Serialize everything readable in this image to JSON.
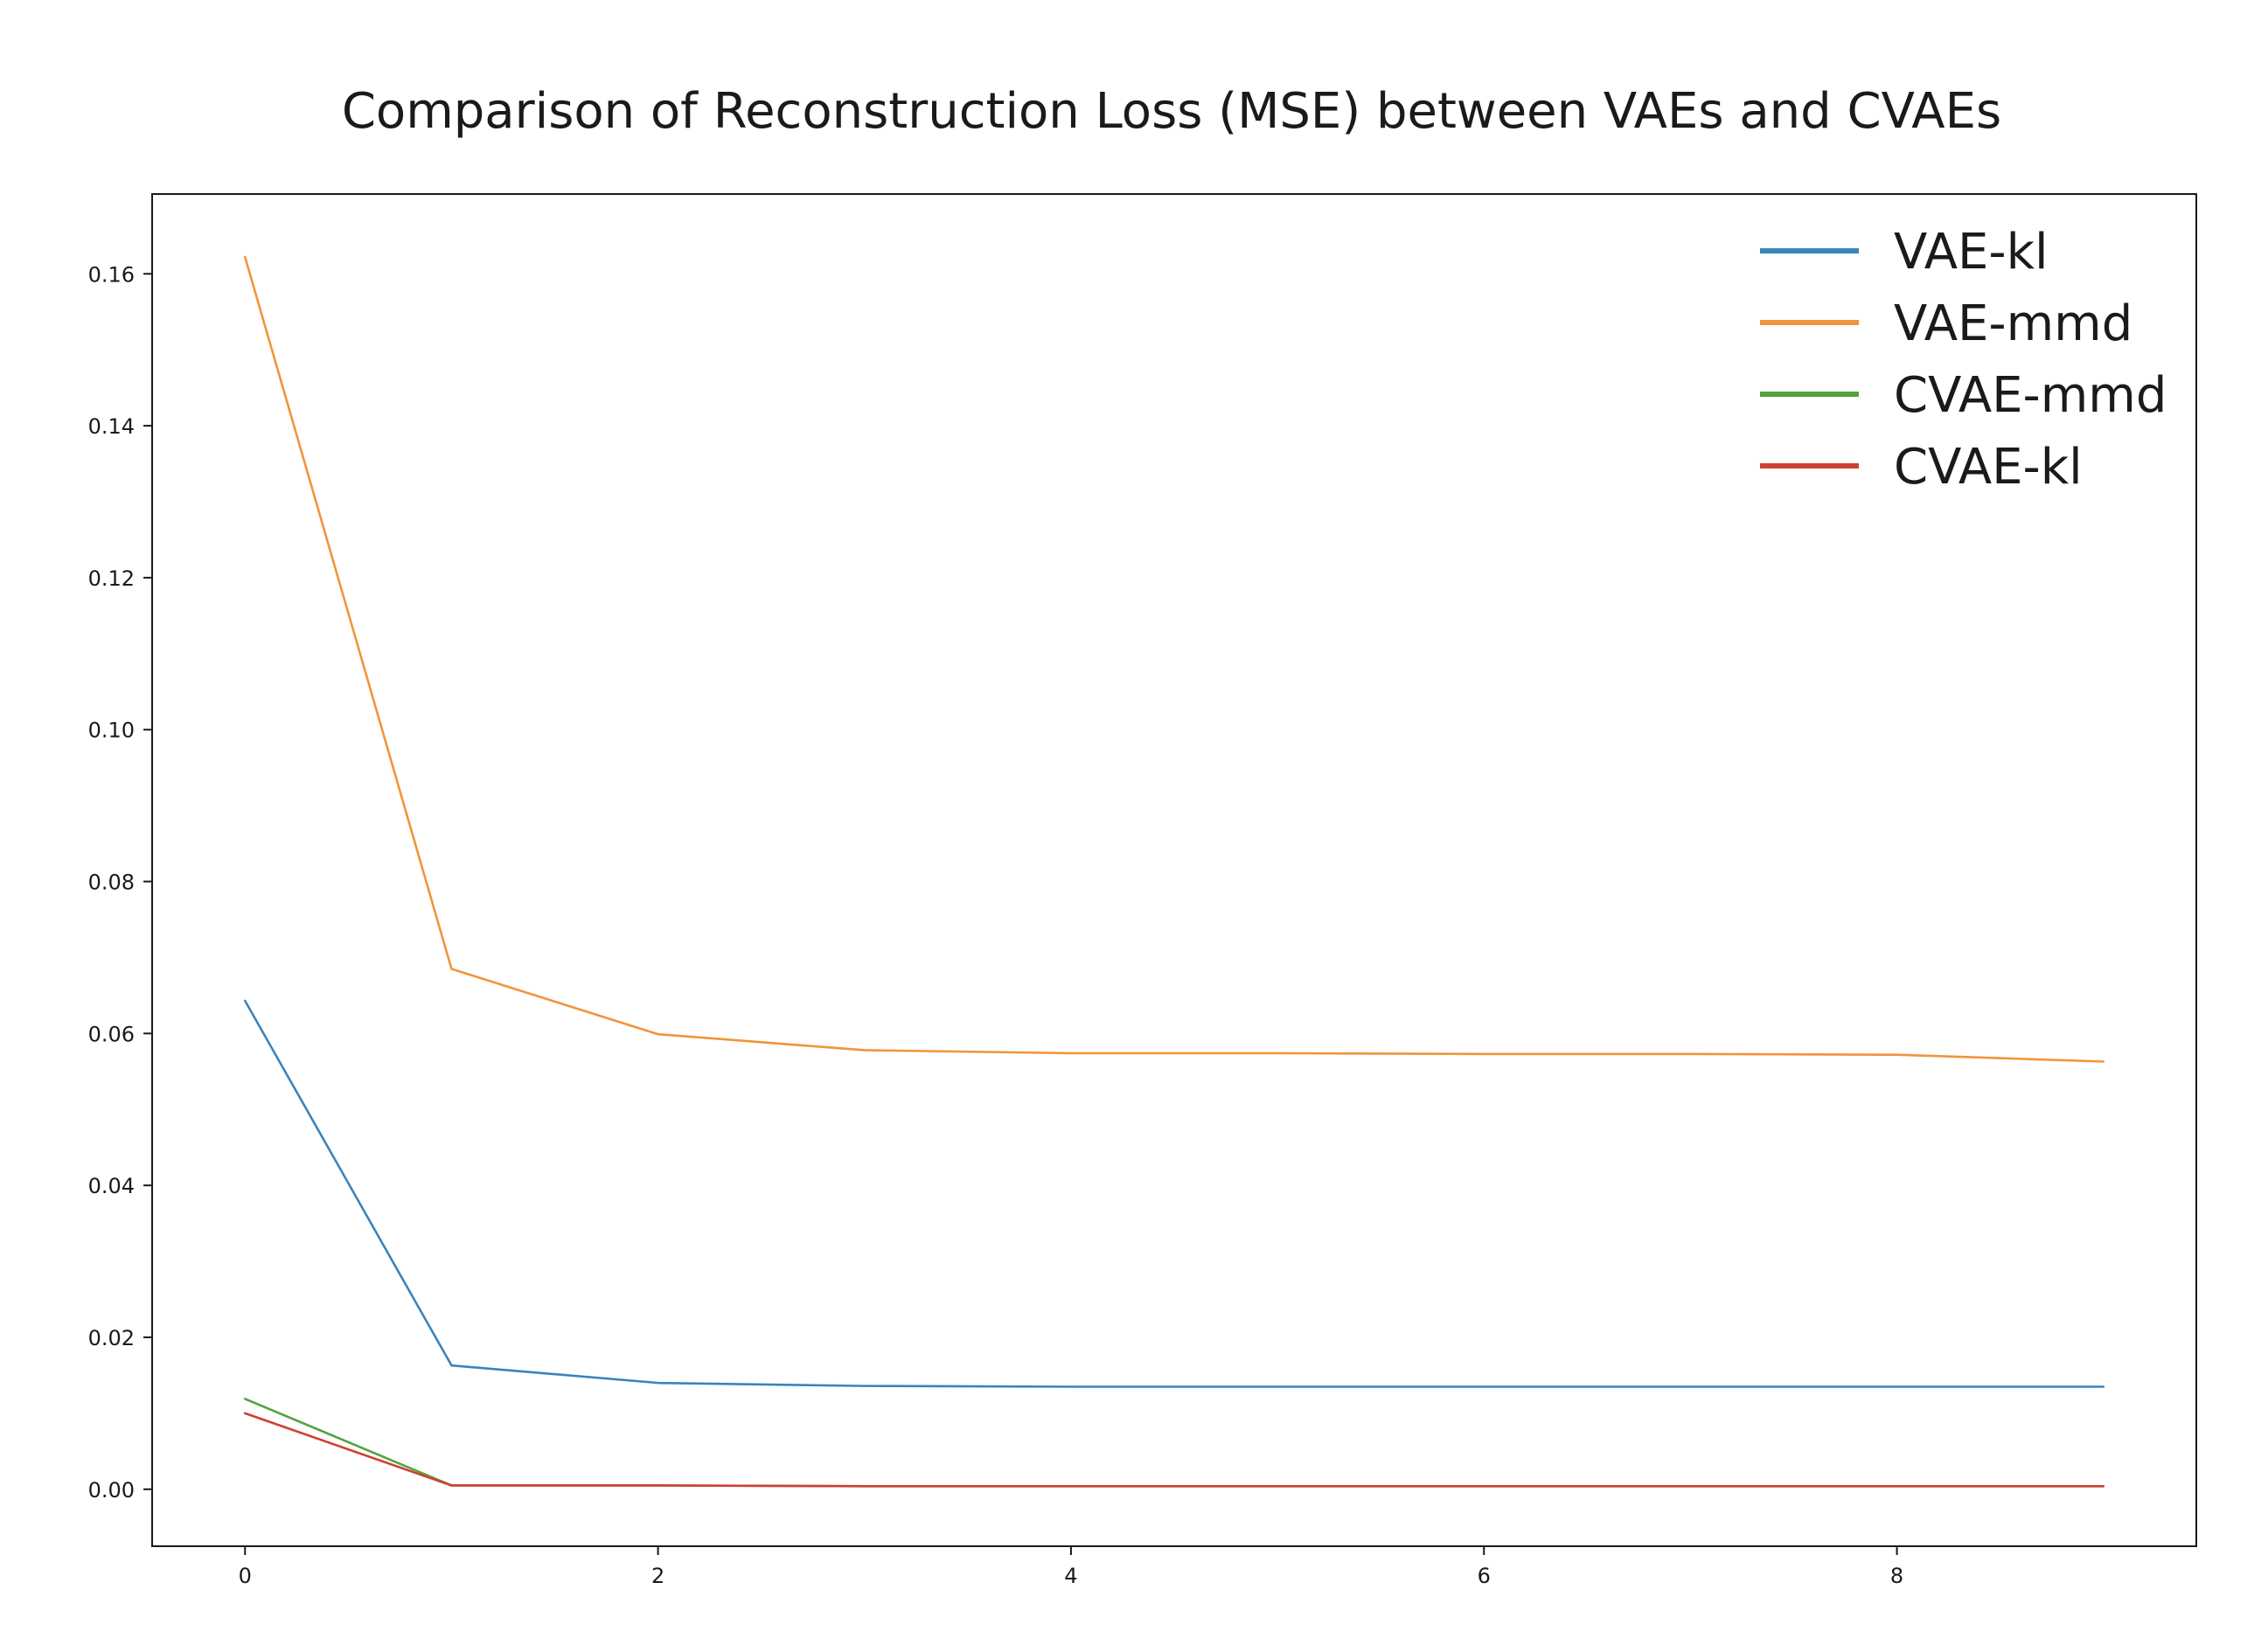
{
  "chart_data": {
    "type": "line",
    "title": "Comparison of Reconstruction Loss (MSE) between VAEs and CVAEs",
    "xlabel": "",
    "ylabel": "",
    "x": [
      0,
      1,
      2,
      3,
      4,
      5,
      6,
      7,
      8,
      9
    ],
    "xlim": [
      -0.45,
      9.45
    ],
    "ylim": [
      -0.0075,
      0.1705
    ],
    "x_ticks": [
      0,
      2,
      4,
      6,
      8
    ],
    "x_tick_labels": [
      "0",
      "2",
      "4",
      "6",
      "8"
    ],
    "y_ticks": [
      0.0,
      0.02,
      0.04,
      0.06,
      0.08,
      0.1,
      0.12,
      0.14,
      0.16
    ],
    "y_tick_labels": [
      "0.00",
      "0.02",
      "0.04",
      "0.06",
      "0.08",
      "0.10",
      "0.12",
      "0.14",
      "0.16"
    ],
    "grid": false,
    "legend_position": "top-right",
    "series": [
      {
        "name": "VAE-kl",
        "color": "#3a84bd",
        "values": [
          0.0643,
          0.0163,
          0.014,
          0.0136,
          0.0135,
          0.0135,
          0.0135,
          0.0135,
          0.0135,
          0.0135
        ]
      },
      {
        "name": "VAE-mmd",
        "color": "#f0953a",
        "values": [
          0.1622,
          0.0685,
          0.0599,
          0.0578,
          0.0574,
          0.0574,
          0.0573,
          0.0573,
          0.0572,
          0.0563
        ]
      },
      {
        "name": "CVAE-mmd",
        "color": "#52a33f",
        "values": [
          0.0119,
          0.0005,
          0.0005,
          0.0004,
          0.0004,
          0.0004,
          0.0004,
          0.0004,
          0.0004,
          0.0004
        ]
      },
      {
        "name": "CVAE-kl",
        "color": "#cf3f33",
        "values": [
          0.01,
          0.0005,
          0.0005,
          0.0004,
          0.0004,
          0.0004,
          0.0004,
          0.0004,
          0.0004,
          0.0004
        ]
      }
    ]
  }
}
